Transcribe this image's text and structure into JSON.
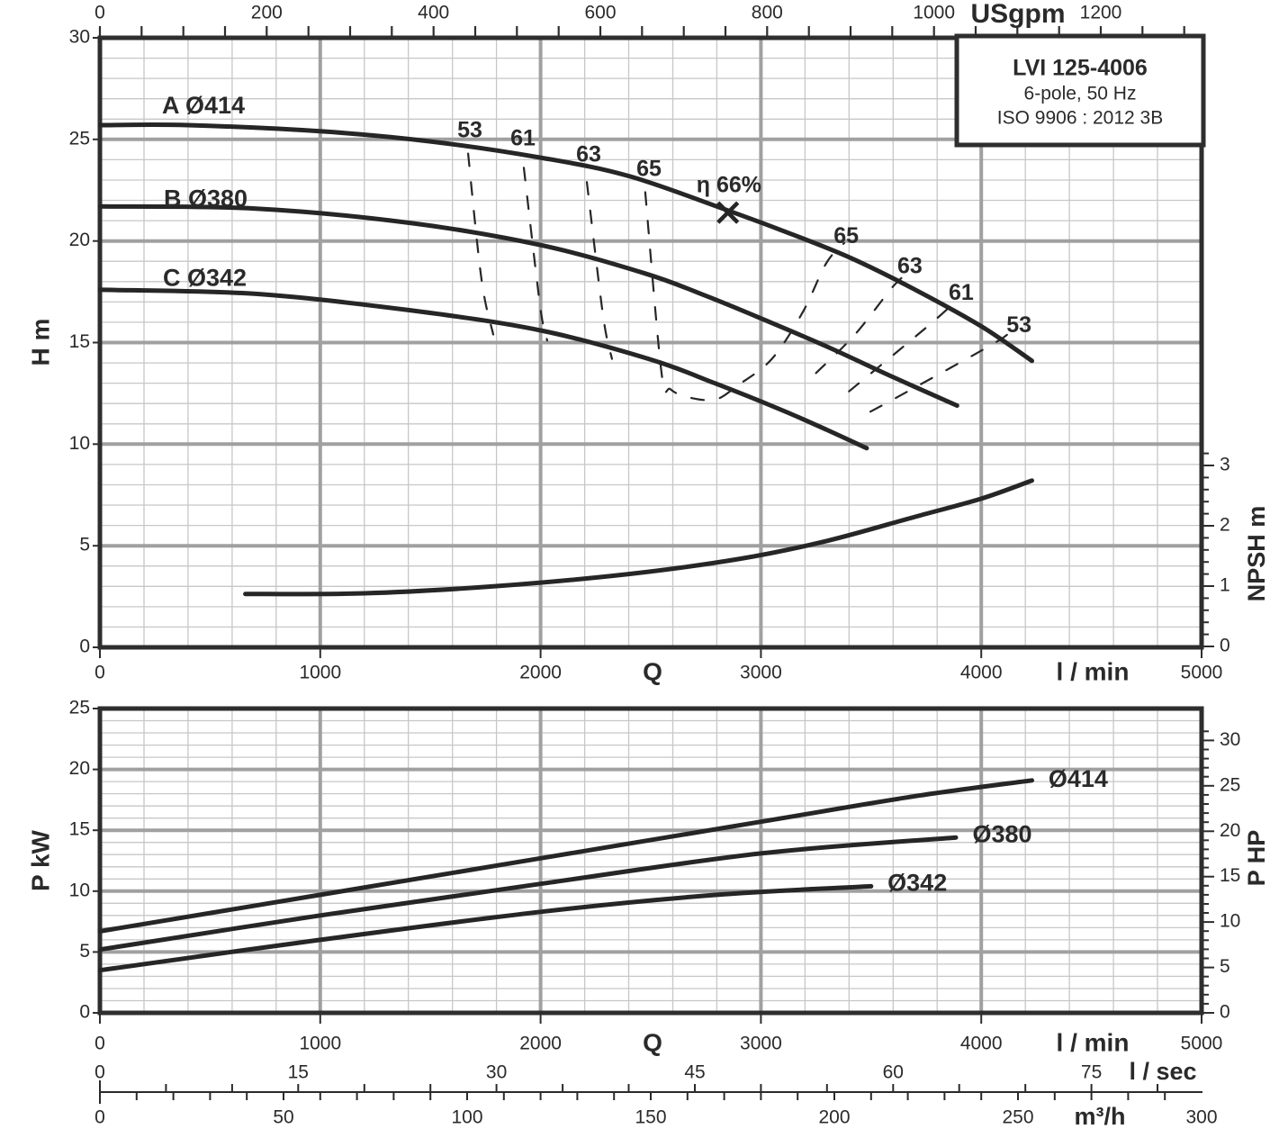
{
  "info_box": {
    "model": "LVI 125-4006",
    "motor": "6-pole, 50 Hz",
    "standard": "ISO 9906 : 2012 3B"
  },
  "colors": {
    "ink": "#2a2a2a",
    "frame": "#2e2e2e",
    "curve": "#262626",
    "grid_minor": "#c7c7c7",
    "grid_major": "#a0a0a0",
    "background": "#ffffff"
  },
  "chart_data": [
    {
      "id": "head-flow-chart",
      "type": "line",
      "title": "Head vs flow with efficiency contours and NPSH",
      "xlabel": "Q",
      "x_axis": {
        "unit": "l / min",
        "min": 0,
        "max": 5000,
        "ticks": [
          0,
          1000,
          2000,
          3000,
          4000,
          5000
        ],
        "minor_step": 200,
        "major_step": 1000,
        "grid": true
      },
      "x2_axis": {
        "unit": "USgpm",
        "ticks": [
          0,
          200,
          400,
          600,
          800,
          1000,
          1200
        ],
        "minor_step": 50,
        "lmin_per_unit": 3.7854
      },
      "y_axis": {
        "label": "H m",
        "min": 0,
        "max": 30,
        "ticks": [
          0,
          5,
          10,
          15,
          20,
          25,
          30
        ],
        "minor_step": 1,
        "major_step": 5,
        "grid": true
      },
      "y2_axis": {
        "label": "NPSH m",
        "ticks": [
          0,
          1,
          2,
          3
        ],
        "minor_step": 0.2,
        "max": 3.2
      },
      "series": [
        {
          "name": "A Ø414",
          "kind": "head-curve",
          "label": "A Ø414",
          "label_at": [
            282,
            26.6
          ],
          "points": [
            [
              0,
              25.7
            ],
            [
              400,
              25.7
            ],
            [
              1000,
              25.4
            ],
            [
              1500,
              24.9
            ],
            [
              2000,
              24.1
            ],
            [
              2400,
              23.2
            ],
            [
              2850,
              21.5
            ],
            [
              3100,
              20.5
            ],
            [
              3400,
              19.2
            ],
            [
              3700,
              17.6
            ],
            [
              4000,
              15.8
            ],
            [
              4230,
              14.1
            ]
          ]
        },
        {
          "name": "B Ø380",
          "kind": "head-curve",
          "label": "B Ø380",
          "label_at": [
            290,
            22.0
          ],
          "points": [
            [
              0,
              21.7
            ],
            [
              700,
              21.6
            ],
            [
              1400,
              20.9
            ],
            [
              2000,
              19.8
            ],
            [
              2475,
              18.4
            ],
            [
              2750,
              17.3
            ],
            [
              3020,
              16.1
            ],
            [
              3300,
              14.8
            ],
            [
              3600,
              13.3
            ],
            [
              3890,
              11.9
            ]
          ]
        },
        {
          "name": "C Ø342",
          "kind": "head-curve",
          "label": "C Ø342",
          "label_at": [
            286,
            18.1
          ],
          "points": [
            [
              0,
              17.6
            ],
            [
              700,
              17.4
            ],
            [
              1400,
              16.6
            ],
            [
              2000,
              15.6
            ],
            [
              2490,
              14.2
            ],
            [
              2790,
              13.0
            ],
            [
              3090,
              11.7
            ],
            [
              3300,
              10.7
            ],
            [
              3480,
              9.8
            ]
          ]
        },
        {
          "name": "NPSH",
          "kind": "npsh-curve",
          "axis": "y2",
          "label": "",
          "points": [
            [
              660,
              0.87
            ],
            [
              1200,
              0.88
            ],
            [
              1800,
              1.0
            ],
            [
              2400,
              1.2
            ],
            [
              2900,
              1.45
            ],
            [
              3300,
              1.75
            ],
            [
              3700,
              2.15
            ],
            [
              4000,
              2.45
            ],
            [
              4230,
              2.75
            ]
          ]
        }
      ],
      "efficiency_contours": [
        {
          "label": "53",
          "side": "left",
          "label_at": [
            1679,
            25.4
          ],
          "points": [
            [
              1671,
              24.3
            ],
            [
              1732,
              18.1
            ],
            [
              1785,
              15.4
            ]
          ]
        },
        {
          "label": "61",
          "side": "left",
          "label_at": [
            1920,
            25.0
          ],
          "points": [
            [
              1924,
              23.6
            ],
            [
              1998,
              16.8
            ],
            [
              2030,
              15.1
            ]
          ]
        },
        {
          "label": "63",
          "side": "left",
          "label_at": [
            2218,
            24.2
          ],
          "points": [
            [
              2210,
              22.9
            ],
            [
              2284,
              16.3
            ],
            [
              2324,
              14.2
            ]
          ]
        },
        {
          "label": "65",
          "side": "left",
          "label_at": [
            2492,
            23.5
          ],
          "points": [
            [
              2475,
              22.4
            ],
            [
              2549,
              13.5
            ],
            [
              2590,
              12.7
            ],
            [
              2672,
              12.3
            ],
            [
              2794,
              12.2
            ],
            [
              2896,
              12.9
            ],
            [
              3050,
              14.2
            ],
            [
              3190,
              16.5
            ],
            [
              3296,
              18.9
            ],
            [
              3378,
              19.9
            ]
          ]
        },
        {
          "label": "65",
          "side": "right",
          "label_at": [
            3387,
            20.2
          ],
          "points": []
        },
        {
          "label": "63",
          "side": "right",
          "label_at": [
            3676,
            18.7
          ],
          "points": [
            [
              3250,
              13.5
            ],
            [
              3427,
              15.4
            ],
            [
              3603,
              17.8
            ],
            [
              3680,
              18.5
            ]
          ]
        },
        {
          "label": "61",
          "side": "right",
          "label_at": [
            3909,
            17.4
          ],
          "points": [
            [
              3400,
              12.6
            ],
            [
              3624,
              14.6
            ],
            [
              3800,
              16.2
            ],
            [
              3890,
              17.1
            ]
          ]
        },
        {
          "label": "53",
          "side": "right",
          "label_at": [
            4171,
            15.8
          ],
          "points": [
            [
              3497,
              11.6
            ],
            [
              3684,
              12.7
            ],
            [
              4048,
              14.9
            ],
            [
              4130,
              15.5
            ]
          ]
        }
      ],
      "duty_point": {
        "label": "η 66%",
        "label_at": [
          2855,
          22.7
        ],
        "marker_at": [
          2850,
          21.4
        ],
        "efficiency_pct": 66
      }
    },
    {
      "id": "power-chart",
      "type": "line",
      "title": "Shaft power vs flow",
      "xlabel": "Q",
      "x_axis": {
        "unit": "l / min",
        "min": 0,
        "max": 5000,
        "ticks": [
          0,
          1000,
          2000,
          3000,
          4000,
          5000
        ],
        "minor_step": 200,
        "major_step": 1000,
        "grid": true
      },
      "y_axis": {
        "label": "P kW",
        "min": 0,
        "max": 25,
        "ticks": [
          0,
          5,
          10,
          15,
          20,
          25
        ],
        "minor_step": 1,
        "major_step": 5,
        "grid": true
      },
      "y2_axis": {
        "label": "P HP",
        "ticks": [
          0,
          5,
          10,
          15,
          20,
          25,
          30
        ],
        "minor_step": 1,
        "max": 31,
        "kw_per_unit": 0.7457
      },
      "series": [
        {
          "name": "Ø414",
          "kind": "power-curve",
          "label": "Ø414",
          "label_at": [
            4440,
            19.1
          ],
          "points": [
            [
              0,
              6.7
            ],
            [
              1000,
              9.7
            ],
            [
              2000,
              12.7
            ],
            [
              3000,
              15.7
            ],
            [
              3700,
              17.8
            ],
            [
              4230,
              19.1
            ]
          ]
        },
        {
          "name": "Ø380",
          "kind": "power-curve",
          "label": "Ø380",
          "label_at": [
            4095,
            14.55
          ],
          "points": [
            [
              0,
              5.2
            ],
            [
              1000,
              8.0
            ],
            [
              2000,
              10.6
            ],
            [
              3000,
              13.1
            ],
            [
              3885,
              14.4
            ]
          ]
        },
        {
          "name": "Ø342",
          "kind": "power-curve",
          "label": "Ø342",
          "label_at": [
            3710,
            10.55
          ],
          "points": [
            [
              0,
              3.5
            ],
            [
              1000,
              6.0
            ],
            [
              2000,
              8.3
            ],
            [
              2800,
              9.7
            ],
            [
              3500,
              10.4
            ]
          ]
        }
      ]
    }
  ],
  "flow_scales": {
    "lsec": {
      "unit": "l / sec",
      "ticks": [
        0,
        15,
        30,
        45,
        60,
        75
      ],
      "minor_step": 5,
      "lmin_per_unit": 60
    },
    "m3h": {
      "unit": "m³/h",
      "ticks": [
        0,
        50,
        100,
        150,
        200,
        250,
        300
      ],
      "minor_step": 10,
      "lmin_per_unit": 16.6667
    }
  }
}
